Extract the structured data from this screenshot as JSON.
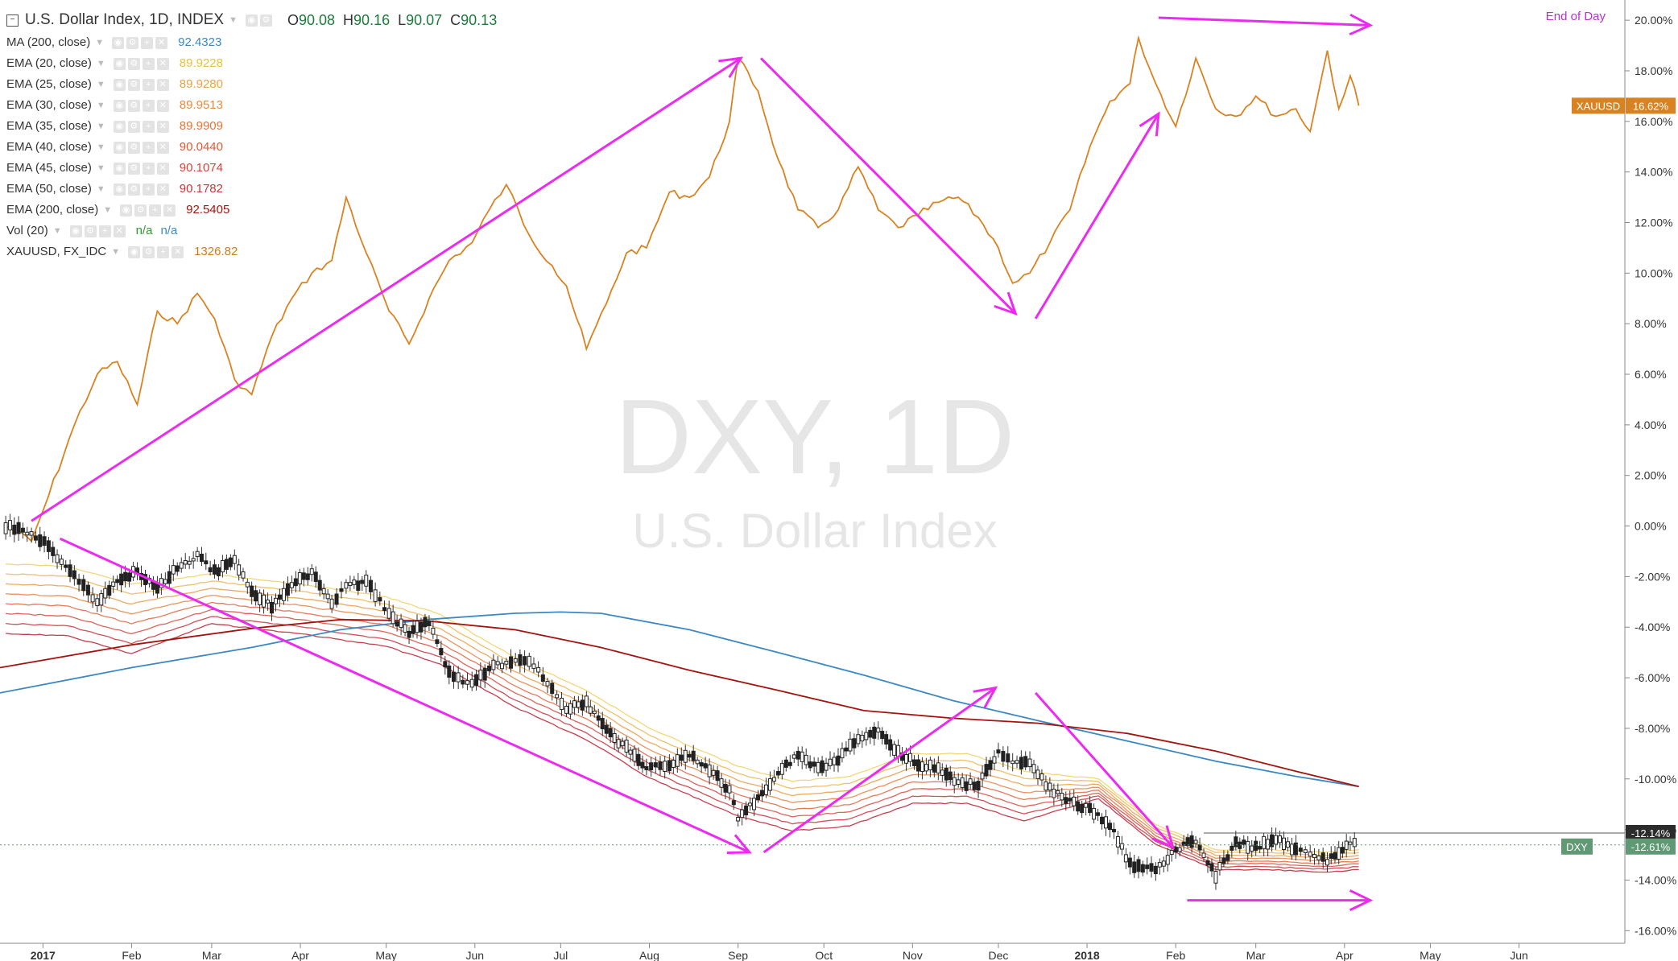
{
  "header": {
    "title": "U.S. Dollar Index, 1D, INDEX",
    "ohlc": [
      {
        "k": "O",
        "v": "90.08"
      },
      {
        "k": "H",
        "v": "90.16"
      },
      {
        "k": "L",
        "v": "90.07"
      },
      {
        "k": "C",
        "v": "90.13"
      }
    ],
    "end_of_day": "End of Day"
  },
  "indicators": [
    {
      "name": "MA (200, close)",
      "value": "92.4323",
      "color": "#3c88c4"
    },
    {
      "name": "EMA (20, close)",
      "value": "89.9228",
      "color": "#e8c33a"
    },
    {
      "name": "EMA (25, close)",
      "value": "89.9280",
      "color": "#eaa243"
    },
    {
      "name": "EMA (30, close)",
      "value": "89.9513",
      "color": "#ea8a3d"
    },
    {
      "name": "EMA (35, close)",
      "value": "89.9909",
      "color": "#e67337"
    },
    {
      "name": "EMA (40, close)",
      "value": "90.0440",
      "color": "#e05a34"
    },
    {
      "name": "EMA (45, close)",
      "value": "90.1074",
      "color": "#d8443a"
    },
    {
      "name": "EMA (50, close)",
      "value": "90.1782",
      "color": "#c9353c"
    },
    {
      "name": "EMA (200, close)",
      "value": "92.5405",
      "color": "#a3140f"
    },
    {
      "name": "Vol (20)",
      "value": "n/a",
      "value2": "n/a",
      "color": "#2e9a2e",
      "color2": "#3c88c4"
    },
    {
      "name": "XAUUSD, FX_IDC",
      "value": "1326.82",
      "color": "#d07a1f"
    }
  ],
  "watermark": {
    "symbol": "DXY, 1D",
    "description": "U.S. Dollar Index"
  },
  "badges": {
    "xauusd": {
      "label": "XAUUSD",
      "value": "16.62%",
      "color": "#d88322"
    },
    "dxy": {
      "label": "DXY",
      "value": "-12.61%",
      "color": "#5f9a74"
    },
    "crosshair": {
      "value": "-12.14%"
    }
  },
  "chart_data": {
    "type": "line",
    "ylabel": "",
    "y_scale": "percent change",
    "ylim": [
      -16.5,
      20.8
    ],
    "y_ticks": [
      "20.00%",
      "18.00%",
      "16.00%",
      "14.00%",
      "12.00%",
      "10.00%",
      "8.00%",
      "6.00%",
      "4.00%",
      "2.00%",
      "0.00%",
      "-2.00%",
      "-4.00%",
      "-6.00%",
      "-8.00%",
      "-10.00%",
      "-12.00%",
      "-14.00%",
      "-16.00%"
    ],
    "x_ticks": [
      "2017",
      "Feb",
      "Mar",
      "Apr",
      "May",
      "Jun",
      "Jul",
      "Aug",
      "Sep",
      "Oct",
      "Nov",
      "Dec",
      "2018",
      "Feb",
      "Mar",
      "Apr",
      "May",
      "Jun"
    ],
    "x_tick_dates": [
      "2017-01-01",
      "2017-02-01",
      "2017-03-01",
      "2017-04-01",
      "2017-05-01",
      "2017-06-01",
      "2017-07-01",
      "2017-08-01",
      "2017-09-01",
      "2017-10-01",
      "2017-11-01",
      "2017-12-01",
      "2018-01-01",
      "2018-02-01",
      "2018-03-01",
      "2018-04-01",
      "2018-05-01",
      "2018-06-01"
    ],
    "xlim": [
      "2016-12-17",
      "2018-07-08"
    ],
    "grid": false,
    "series": [
      {
        "name": "XAUUSD",
        "color": "#d88322",
        "x": [
          "2016-12-19",
          "2016-12-28",
          "2017-01-03",
          "2017-01-12",
          "2017-01-20",
          "2017-01-27",
          "2017-02-03",
          "2017-02-10",
          "2017-02-17",
          "2017-02-24",
          "2017-03-02",
          "2017-03-09",
          "2017-03-15",
          "2017-03-22",
          "2017-03-29",
          "2017-04-05",
          "2017-04-12",
          "2017-04-17",
          "2017-04-24",
          "2017-05-02",
          "2017-05-09",
          "2017-05-16",
          "2017-05-23",
          "2017-05-31",
          "2017-06-06",
          "2017-06-12",
          "2017-06-20",
          "2017-06-28",
          "2017-07-03",
          "2017-07-10",
          "2017-07-17",
          "2017-07-24",
          "2017-07-31",
          "2017-08-08",
          "2017-08-15",
          "2017-08-22",
          "2017-08-29",
          "2017-09-01",
          "2017-09-08",
          "2017-09-15",
          "2017-09-22",
          "2017-09-29",
          "2017-10-06",
          "2017-10-13",
          "2017-10-20",
          "2017-10-27",
          "2017-11-03",
          "2017-11-10",
          "2017-11-17",
          "2017-11-24",
          "2017-12-01",
          "2017-12-06",
          "2017-12-12",
          "2017-12-19",
          "2017-12-26",
          "2018-01-02",
          "2018-01-09",
          "2018-01-16",
          "2018-01-19",
          "2018-01-25",
          "2018-02-01",
          "2018-02-08",
          "2018-02-15",
          "2018-02-22",
          "2018-03-01",
          "2018-03-08",
          "2018-03-15",
          "2018-03-20",
          "2018-03-26",
          "2018-03-30",
          "2018-04-03",
          "2018-04-06"
        ],
        "y": [
          0.0,
          -0.6,
          1.2,
          4.0,
          6.0,
          6.5,
          4.8,
          8.5,
          8.0,
          9.2,
          8.2,
          5.8,
          5.2,
          7.5,
          9.0,
          10.0,
          10.5,
          13.0,
          10.8,
          8.5,
          7.2,
          9.0,
          10.5,
          11.2,
          12.5,
          13.5,
          11.5,
          10.3,
          9.5,
          7.0,
          8.8,
          10.8,
          11.0,
          13.2,
          13.0,
          13.8,
          16.0,
          18.5,
          17.2,
          14.5,
          12.5,
          11.8,
          12.5,
          14.2,
          12.5,
          11.8,
          12.3,
          12.8,
          13.0,
          12.2,
          11.0,
          9.6,
          10.0,
          11.2,
          12.5,
          15.0,
          16.8,
          17.5,
          19.3,
          17.5,
          15.8,
          18.5,
          16.5,
          16.2,
          17.0,
          16.2,
          16.5,
          15.6,
          18.8,
          16.5,
          17.8,
          16.62
        ]
      },
      {
        "name": "DXY",
        "color": "#333333",
        "x": [
          "2016-12-19",
          "2016-12-28",
          "2017-01-03",
          "2017-01-12",
          "2017-01-20",
          "2017-01-27",
          "2017-02-03",
          "2017-02-10",
          "2017-02-17",
          "2017-02-24",
          "2017-03-02",
          "2017-03-09",
          "2017-03-15",
          "2017-03-22",
          "2017-03-29",
          "2017-04-05",
          "2017-04-12",
          "2017-04-17",
          "2017-04-24",
          "2017-05-02",
          "2017-05-09",
          "2017-05-16",
          "2017-05-23",
          "2017-05-31",
          "2017-06-06",
          "2017-06-12",
          "2017-06-20",
          "2017-06-28",
          "2017-07-03",
          "2017-07-10",
          "2017-07-17",
          "2017-07-24",
          "2017-07-31",
          "2017-08-08",
          "2017-08-15",
          "2017-08-22",
          "2017-08-29",
          "2017-09-01",
          "2017-09-08",
          "2017-09-15",
          "2017-09-22",
          "2017-09-29",
          "2017-10-06",
          "2017-10-13",
          "2017-10-20",
          "2017-10-27",
          "2017-11-03",
          "2017-11-10",
          "2017-11-17",
          "2017-11-24",
          "2017-12-01",
          "2017-12-06",
          "2017-12-12",
          "2017-12-19",
          "2017-12-26",
          "2018-01-02",
          "2018-01-09",
          "2018-01-16",
          "2018-01-19",
          "2018-01-25",
          "2018-02-01",
          "2018-02-08",
          "2018-02-15",
          "2018-02-22",
          "2018-03-01",
          "2018-03-08",
          "2018-03-15",
          "2018-03-20",
          "2018-03-26",
          "2018-03-30",
          "2018-04-03",
          "2018-04-06"
        ],
        "y": [
          0.0,
          -0.3,
          -0.8,
          -2.0,
          -3.0,
          -2.2,
          -1.8,
          -2.5,
          -1.6,
          -1.2,
          -1.8,
          -1.4,
          -2.6,
          -3.2,
          -2.4,
          -1.8,
          -3.0,
          -2.4,
          -2.2,
          -3.5,
          -4.2,
          -3.8,
          -5.8,
          -6.3,
          -5.6,
          -5.4,
          -5.3,
          -6.5,
          -7.2,
          -7.0,
          -8.1,
          -8.8,
          -9.5,
          -9.4,
          -9.0,
          -9.6,
          -10.5,
          -11.5,
          -10.8,
          -9.8,
          -9.0,
          -9.6,
          -9.2,
          -8.4,
          -8.0,
          -9.0,
          -9.4,
          -9.6,
          -10.2,
          -10.2,
          -9.0,
          -9.3,
          -9.4,
          -10.4,
          -10.9,
          -11.2,
          -11.8,
          -13.4,
          -13.5,
          -13.6,
          -12.8,
          -12.4,
          -13.8,
          -12.5,
          -12.7,
          -12.4,
          -12.8,
          -12.9,
          -13.2,
          -12.9,
          -12.6,
          -12.61
        ]
      },
      {
        "name": "MA (200, close)",
        "color": "#3c88c4",
        "x": [
          "2016-12-17",
          "2017-02-01",
          "2017-03-15",
          "2017-04-15",
          "2017-05-15",
          "2017-06-15",
          "2017-07-01",
          "2017-07-15",
          "2017-08-15",
          "2017-09-15",
          "2017-10-15",
          "2017-11-15",
          "2017-12-15",
          "2018-01-15",
          "2018-02-15",
          "2018-03-15",
          "2018-04-06"
        ],
        "y": [
          -6.6,
          -5.6,
          -4.8,
          -4.1,
          -3.7,
          -3.45,
          -3.4,
          -3.45,
          -4.1,
          -5.0,
          -5.9,
          -6.9,
          -7.7,
          -8.5,
          -9.3,
          -9.9,
          -10.3
        ]
      },
      {
        "name": "EMA (200, close)",
        "color": "#a3140f",
        "x": [
          "2016-12-17",
          "2017-02-01",
          "2017-03-15",
          "2017-04-15",
          "2017-05-15",
          "2017-06-15",
          "2017-07-15",
          "2017-08-15",
          "2017-09-15",
          "2017-10-15",
          "2017-11-15",
          "2017-12-15",
          "2018-01-15",
          "2018-02-15",
          "2018-03-15",
          "2018-04-06"
        ],
        "y": [
          -5.6,
          -4.7,
          -4.05,
          -3.7,
          -3.75,
          -4.1,
          -4.8,
          -5.7,
          -6.5,
          -7.3,
          -7.6,
          -7.8,
          -8.2,
          -8.9,
          -9.7,
          -10.3
        ]
      }
    ],
    "ema_band": {
      "x": [
        "2016-12-19",
        "2017-01-10",
        "2017-02-01",
        "2017-03-01",
        "2017-04-01",
        "2017-05-01",
        "2017-05-20",
        "2017-06-15",
        "2017-07-10",
        "2017-08-01",
        "2017-09-01",
        "2017-09-20",
        "2017-10-10",
        "2017-11-01",
        "2017-11-20",
        "2017-12-10",
        "2018-01-05",
        "2018-01-25",
        "2018-02-15",
        "2018-03-05",
        "2018-03-25",
        "2018-04-06"
      ],
      "y": [
        -1.5,
        -1.6,
        -2.3,
        -1.9,
        -2.3,
        -2.8,
        -3.5,
        -5.2,
        -6.5,
        -8.0,
        -9.5,
        -10.1,
        -9.9,
        -9.0,
        -9.0,
        -9.7,
        -10.0,
        -11.8,
        -12.8,
        -12.8,
        -12.9,
        -12.8
      ]
    },
    "annotations": [
      {
        "type": "arrow",
        "color": "#ec2bf0",
        "from": [
          "2016-12-28",
          0.2
        ],
        "to": [
          "2017-09-02",
          18.5
        ]
      },
      {
        "type": "arrow",
        "color": "#ec2bf0",
        "from": [
          "2017-09-09",
          18.5
        ],
        "to": [
          "2017-12-07",
          8.4
        ]
      },
      {
        "type": "arrow",
        "color": "#ec2bf0",
        "from": [
          "2017-12-14",
          8.2
        ],
        "to": [
          "2018-01-26",
          16.3
        ]
      },
      {
        "type": "arrow",
        "color": "#ec2bf0",
        "from": [
          "2018-01-26",
          20.1
        ],
        "to": [
          "2018-04-10",
          19.8
        ]
      },
      {
        "type": "arrow",
        "color": "#ec2bf0",
        "from": [
          "2017-01-07",
          -0.5
        ],
        "to": [
          "2017-09-05",
          -12.9
        ]
      },
      {
        "type": "arrow",
        "color": "#ec2bf0",
        "from": [
          "2017-09-10",
          -12.9
        ],
        "to": [
          "2017-11-30",
          -6.4
        ]
      },
      {
        "type": "arrow",
        "color": "#ec2bf0",
        "from": [
          "2017-12-14",
          -6.6
        ],
        "to": [
          "2018-01-31",
          -12.7
        ]
      },
      {
        "type": "arrow",
        "color": "#ec2bf0",
        "from": [
          "2018-02-05",
          -14.8
        ],
        "to": [
          "2018-04-10",
          -14.8
        ]
      }
    ]
  }
}
